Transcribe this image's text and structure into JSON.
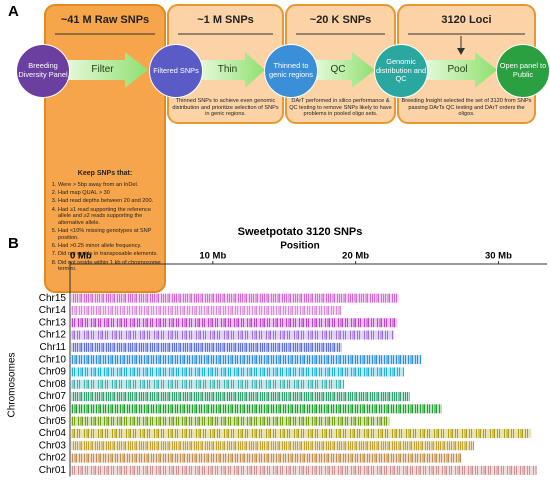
{
  "panel_a": {
    "label": "A",
    "stages": [
      {
        "header": "~41 M Raw SNPs"
      },
      {
        "header": "~1 M SNPs",
        "description": "Thinned SNPs to achieve even genomic distribution and prioritize selection of SNPs in genic regions."
      },
      {
        "header": "~20 K SNPs",
        "description": "DArT performed in silico performance & QC testing to remove SNPs likely to have problems in pooled oligo sets."
      },
      {
        "header": "3120 Loci",
        "description": "Breeding Insight selected the set of 3120 from SNPs passing DArTs QC testing and DArT orders the oligos."
      }
    ],
    "nodes": [
      "Breeding Diversity Panel",
      "Filtered SNPs",
      "Thinned to genic regions",
      "Genomic distribution and QC",
      "Open panel to Public"
    ],
    "steps": [
      "Filter",
      "Thin",
      "QC",
      "Pool"
    ],
    "filter_criteria": {
      "title": "Keep SNPs that:",
      "items": [
        "Were > 5bp away from an InDel.",
        "Had map QUAL > 30",
        "Had read depths between 20 and 200.",
        "Had ≥1 read supporting the reference allele and ≥2 reads supporting the alternative allele.",
        "Had <10% missing genotypes at SNP position.",
        "Had >0.25 minor allele frequency.",
        "Did not reside in transposable elements.",
        "Did not reside within 1 kb of chromosome termini."
      ]
    }
  },
  "chart_data": {
    "type": "bar",
    "panel_label": "B",
    "title": "Sweetpotato 3120 SNPs",
    "x_label": "Position",
    "y_label": "Chromosomes",
    "categories": [
      "Chr15",
      "Chr14",
      "Chr13",
      "Chr12",
      "Chr11",
      "Chr10",
      "Chr09",
      "Chr08",
      "Chr07",
      "Chr06",
      "Chr05",
      "Chr04",
      "Chr03",
      "Chr02",
      "Chr01"
    ],
    "values": [
      23,
      19,
      22.9,
      22.7,
      19,
      24.6,
      23.4,
      19.2,
      23.8,
      26,
      22.4,
      32.3,
      28.3,
      27.4,
      32.7
    ],
    "colors": [
      "#d36ad3",
      "#d98ad9",
      "#c040d0",
      "#a070e0",
      "#6070e0",
      "#3090e0",
      "#20b0e0",
      "#40b0b0",
      "#30a070",
      "#20a030",
      "#70a010",
      "#b0a010",
      "#c0a030",
      "#c09050",
      "#d09090"
    ],
    "xlim": [
      0,
      33.4
    ],
    "xticks": [
      {
        "value": 0,
        "label": "0 Mb"
      },
      {
        "value": 10,
        "label": "10 Mb"
      },
      {
        "value": 20,
        "label": "20 Mb"
      },
      {
        "value": 30,
        "label": "30 Mb"
      }
    ]
  }
}
